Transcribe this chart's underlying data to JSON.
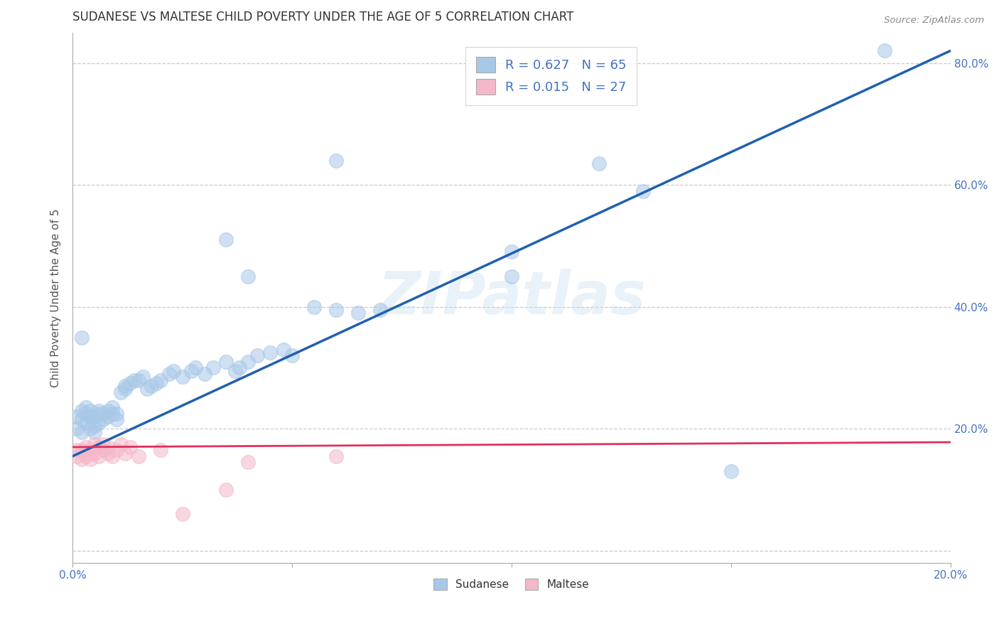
{
  "title": "SUDANESE VS MALTESE CHILD POVERTY UNDER THE AGE OF 5 CORRELATION CHART",
  "source": "Source: ZipAtlas.com",
  "ylabel": "Child Poverty Under the Age of 5",
  "xlim": [
    0.0,
    0.2
  ],
  "ylim": [
    -0.02,
    0.85
  ],
  "yticks": [
    0.0,
    0.2,
    0.4,
    0.6,
    0.8
  ],
  "ytick_labels": [
    "",
    "20.0%",
    "40.0%",
    "60.0%",
    "80.0%"
  ],
  "xticks": [
    0.0,
    0.05,
    0.1,
    0.15,
    0.2
  ],
  "xtick_labels": [
    "0.0%",
    "",
    "",
    "",
    "20.0%"
  ],
  "sudanese_color": "#a8c8e8",
  "maltese_color": "#f4b8c8",
  "sudanese_line_color": "#2060b0",
  "maltese_line_color": "#e03060",
  "legend_text_color": "#4472c4",
  "background_color": "#ffffff",
  "grid_color": "#c8c8d8",
  "watermark": "ZIPatlas",
  "R_sudanese": 0.627,
  "N_sudanese": 65,
  "R_maltese": 0.015,
  "N_maltese": 27,
  "sudanese_line_x0": 0.0,
  "sudanese_line_y0": 0.155,
  "sudanese_line_x1": 0.2,
  "sudanese_line_y1": 0.82,
  "maltese_line_x0": 0.0,
  "maltese_line_y0": 0.17,
  "maltese_line_x1": 0.2,
  "maltese_line_y1": 0.178,
  "sudanese_x": [
    0.001,
    0.001,
    0.002,
    0.002,
    0.002,
    0.003,
    0.003,
    0.003,
    0.004,
    0.004,
    0.004,
    0.005,
    0.005,
    0.005,
    0.006,
    0.006,
    0.006,
    0.007,
    0.007,
    0.008,
    0.008,
    0.009,
    0.009,
    0.01,
    0.01,
    0.011,
    0.012,
    0.012,
    0.013,
    0.014,
    0.015,
    0.016,
    0.017,
    0.018,
    0.019,
    0.02,
    0.022,
    0.023,
    0.025,
    0.027,
    0.028,
    0.03,
    0.032,
    0.035,
    0.037,
    0.038,
    0.04,
    0.042,
    0.045,
    0.048,
    0.05,
    0.055,
    0.06,
    0.065,
    0.07,
    0.035,
    0.04,
    0.06,
    0.1,
    0.1,
    0.12,
    0.13,
    0.002,
    0.15,
    0.185
  ],
  "sudanese_y": [
    0.2,
    0.22,
    0.195,
    0.215,
    0.23,
    0.21,
    0.225,
    0.235,
    0.2,
    0.22,
    0.23,
    0.195,
    0.205,
    0.22,
    0.21,
    0.225,
    0.23,
    0.215,
    0.225,
    0.22,
    0.23,
    0.225,
    0.235,
    0.215,
    0.225,
    0.26,
    0.265,
    0.27,
    0.275,
    0.28,
    0.28,
    0.285,
    0.265,
    0.27,
    0.275,
    0.28,
    0.29,
    0.295,
    0.285,
    0.295,
    0.3,
    0.29,
    0.3,
    0.31,
    0.295,
    0.3,
    0.31,
    0.32,
    0.325,
    0.33,
    0.32,
    0.4,
    0.395,
    0.39,
    0.395,
    0.51,
    0.45,
    0.64,
    0.45,
    0.49,
    0.635,
    0.59,
    0.35,
    0.13,
    0.82
  ],
  "maltese_x": [
    0.001,
    0.001,
    0.002,
    0.002,
    0.003,
    0.003,
    0.004,
    0.004,
    0.005,
    0.005,
    0.006,
    0.006,
    0.007,
    0.007,
    0.008,
    0.008,
    0.009,
    0.01,
    0.011,
    0.012,
    0.013,
    0.015,
    0.02,
    0.025,
    0.035,
    0.04,
    0.06
  ],
  "maltese_y": [
    0.155,
    0.165,
    0.15,
    0.165,
    0.155,
    0.17,
    0.15,
    0.165,
    0.16,
    0.175,
    0.155,
    0.17,
    0.165,
    0.175,
    0.16,
    0.17,
    0.155,
    0.165,
    0.175,
    0.16,
    0.17,
    0.155,
    0.165,
    0.06,
    0.1,
    0.145,
    0.155
  ]
}
